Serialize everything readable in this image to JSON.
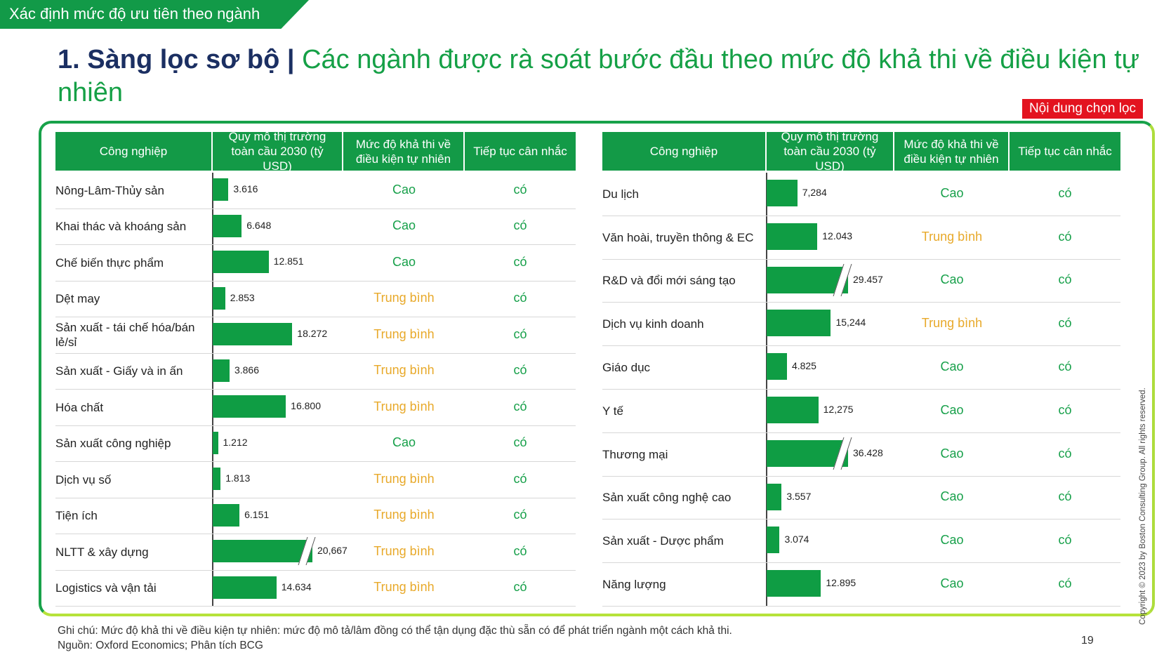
{
  "tag": "Xác định mức độ ưu tiên theo ngành",
  "title": {
    "lead": "1. Sàng lọc sơ bộ | ",
    "rest": "Các ngành được rà soát bước đầu theo mức độ khả thi về điều kiện tự nhiên"
  },
  "badge": "Nội dung chọn lọc",
  "headers": {
    "industry": "Công nghiệp",
    "market": "Quy mô thị trường toàn cầu 2030 (tỷ USD)",
    "feasibility": "Mức độ khả thi về điều kiện tự nhiên",
    "consider": "Tiếp tục cân nhắc"
  },
  "colors": {
    "green": "#129a48",
    "high": "#17a04a",
    "medium": "#e8a92a",
    "badge": "#e3131f",
    "title_lead": "#1b2f62"
  },
  "left_table": [
    {
      "name": "Nông-Lâm-Thủy sản",
      "value": "3.616",
      "num": 3.616,
      "level": "Cao",
      "consider": "có"
    },
    {
      "name": "Khai thác và khoáng sản",
      "value": "6.648",
      "num": 6.648,
      "level": "Cao",
      "consider": "có"
    },
    {
      "name": "Chế biến thực phẩm",
      "value": "12.851",
      "num": 12.851,
      "level": "Cao",
      "consider": "có"
    },
    {
      "name": "Dệt may",
      "value": "2.853",
      "num": 2.853,
      "level": "Trung bình",
      "consider": "có"
    },
    {
      "name": "Sản xuất - tái chế hóa/bán lẻ/sỉ",
      "value": "18.272",
      "num": 18.272,
      "level": "Trung bình",
      "consider": "có"
    },
    {
      "name": "Sản xuất - Giấy và in ấn",
      "value": "3.866",
      "num": 3.866,
      "level": "Trung bình",
      "consider": "có"
    },
    {
      "name": "Hóa chất",
      "value": "16.800",
      "num": 16.8,
      "level": "Trung bình",
      "consider": "có"
    },
    {
      "name": "Sản xuất công nghiệp",
      "value": "1.212",
      "num": 1.212,
      "level": "Cao",
      "consider": "có"
    },
    {
      "name": "Dịch vụ số",
      "value": "1.813",
      "num": 1.813,
      "level": "Trung bình",
      "consider": "có"
    },
    {
      "name": "Tiện ích",
      "value": "6.151",
      "num": 6.151,
      "level": "Trung bình",
      "consider": "có"
    },
    {
      "name": "NLTT & xây dựng",
      "value": "20,667",
      "num": 20.667,
      "level": "Trung bình",
      "consider": "có",
      "broken": true
    },
    {
      "name": "Logistics và vận tải",
      "value": "14.634",
      "num": 14.634,
      "level": "Trung bình",
      "consider": "có"
    }
  ],
  "right_table": [
    {
      "name": "Du lịch",
      "value": "7,284",
      "num": 7.284,
      "level": "Cao",
      "consider": "có"
    },
    {
      "name": "Văn hoài, truyền thông & EC",
      "value": "12.043",
      "num": 12.043,
      "level": "Trung bình",
      "consider": "có"
    },
    {
      "name": "R&D và đổi mới sáng tạo",
      "value": "29.457",
      "num": 29.457,
      "level": "Cao",
      "consider": "có",
      "broken": true
    },
    {
      "name": "Dịch vụ kinh doanh",
      "value": "15,244",
      "num": 15.244,
      "level": "Trung bình",
      "consider": "có"
    },
    {
      "name": "Giáo dục",
      "value": "4.825",
      "num": 4.825,
      "level": "Cao",
      "consider": "có"
    },
    {
      "name": "Y tế",
      "value": "12,275",
      "num": 12.275,
      "level": "Cao",
      "consider": "có"
    },
    {
      "name": "Thương mại",
      "value": "36.428",
      "num": 36.428,
      "level": "Cao",
      "consider": "có",
      "broken": true
    },
    {
      "name": "Sản xuất công nghệ cao",
      "value": "3.557",
      "num": 3.557,
      "level": "Cao",
      "consider": "có"
    },
    {
      "name": "Sản xuất - Dược phẩm",
      "value": "3.074",
      "num": 3.074,
      "level": "Cao",
      "consider": "có"
    },
    {
      "name": "Năng lượng",
      "value": "12.895",
      "num": 12.895,
      "level": "Cao",
      "consider": "có"
    }
  ],
  "note": "Ghi chú: Mức độ khả thi về điều kiện tự nhiên: mức độ mô tả/lâm đồng có thể tận dụng đặc thù sẵn có để phát triển ngành một cách khả thi.",
  "source": "Nguồn: Oxford Economics; Phân tích BCG",
  "page_number": "19",
  "copyright": "Copyright © 2023 by Boston Consulting Group. All rights reserved."
}
